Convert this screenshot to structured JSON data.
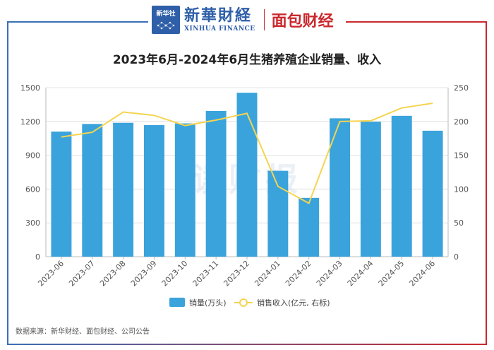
{
  "header": {
    "logo_square_text": "新华社",
    "logo_cn": "新華財経",
    "logo_en": "XINHUA FINANCE",
    "logo_red": "面包财经"
  },
  "chart_data": {
    "type": "bar",
    "title": "2023年6月-2024年6月生猪养殖企业销量、收入",
    "categories": [
      "2023-06",
      "2023-07",
      "2023-08",
      "2023-09",
      "2023-10",
      "2023-11",
      "2023-12",
      "2024-01",
      "2024-02",
      "2024-03",
      "2024-04",
      "2024-05",
      "2024-06"
    ],
    "series": [
      {
        "name": "销量(万头)",
        "type": "bar",
        "axis": "left",
        "color": "#3aa3db",
        "values": [
          1110,
          1178,
          1188,
          1168,
          1183,
          1293,
          1455,
          762,
          522,
          1228,
          1198,
          1250,
          1118
        ]
      },
      {
        "name": "销售收入(亿元, 右标)",
        "type": "line",
        "axis": "right",
        "color": "#f5d451",
        "values": [
          177,
          184,
          214,
          209,
          194,
          202,
          212,
          104,
          79,
          200,
          201,
          220,
          227
        ]
      }
    ],
    "y_left": {
      "min": 0,
      "max": 1500,
      "ticks": [
        0,
        300,
        600,
        900,
        1200,
        1500
      ]
    },
    "y_right": {
      "min": 0,
      "max": 250,
      "ticks": [
        0,
        50,
        100,
        150,
        200,
        250
      ]
    },
    "grid": true,
    "legend_position": "bottom",
    "watermark": "读财报"
  },
  "source": "数据来源：新华财经、面包财经、公司公告"
}
